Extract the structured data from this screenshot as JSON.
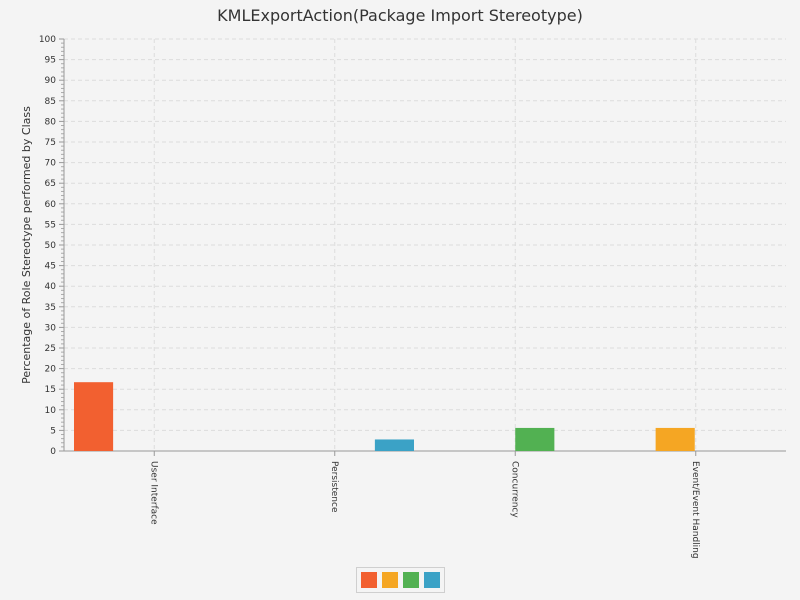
{
  "chart_data": {
    "type": "bar",
    "title": "KMLExportAction(Package Import Stereotype)",
    "xlabel": "",
    "ylabel": "Percentage of Role Stereotype performed by Class",
    "ylim": [
      0,
      100
    ],
    "yticks": [
      0,
      5,
      10,
      15,
      20,
      25,
      30,
      35,
      40,
      45,
      50,
      55,
      60,
      65,
      70,
      75,
      80,
      85,
      90,
      95,
      100
    ],
    "grid": true,
    "legend": "bottom-center",
    "categories": [
      "User Interface",
      "Persistence",
      "Concurrency",
      "Event/Event Handling"
    ],
    "series": [
      {
        "color": "#f26030",
        "values": [
          16.7,
          0,
          0,
          0
        ]
      },
      {
        "color": "#f5a623",
        "values": [
          0,
          0,
          0,
          5.6
        ]
      },
      {
        "color": "#52b152",
        "values": [
          0,
          0,
          5.6,
          0
        ]
      },
      {
        "color": "#3ba2c6",
        "values": [
          0,
          2.8,
          0,
          0
        ]
      }
    ]
  }
}
